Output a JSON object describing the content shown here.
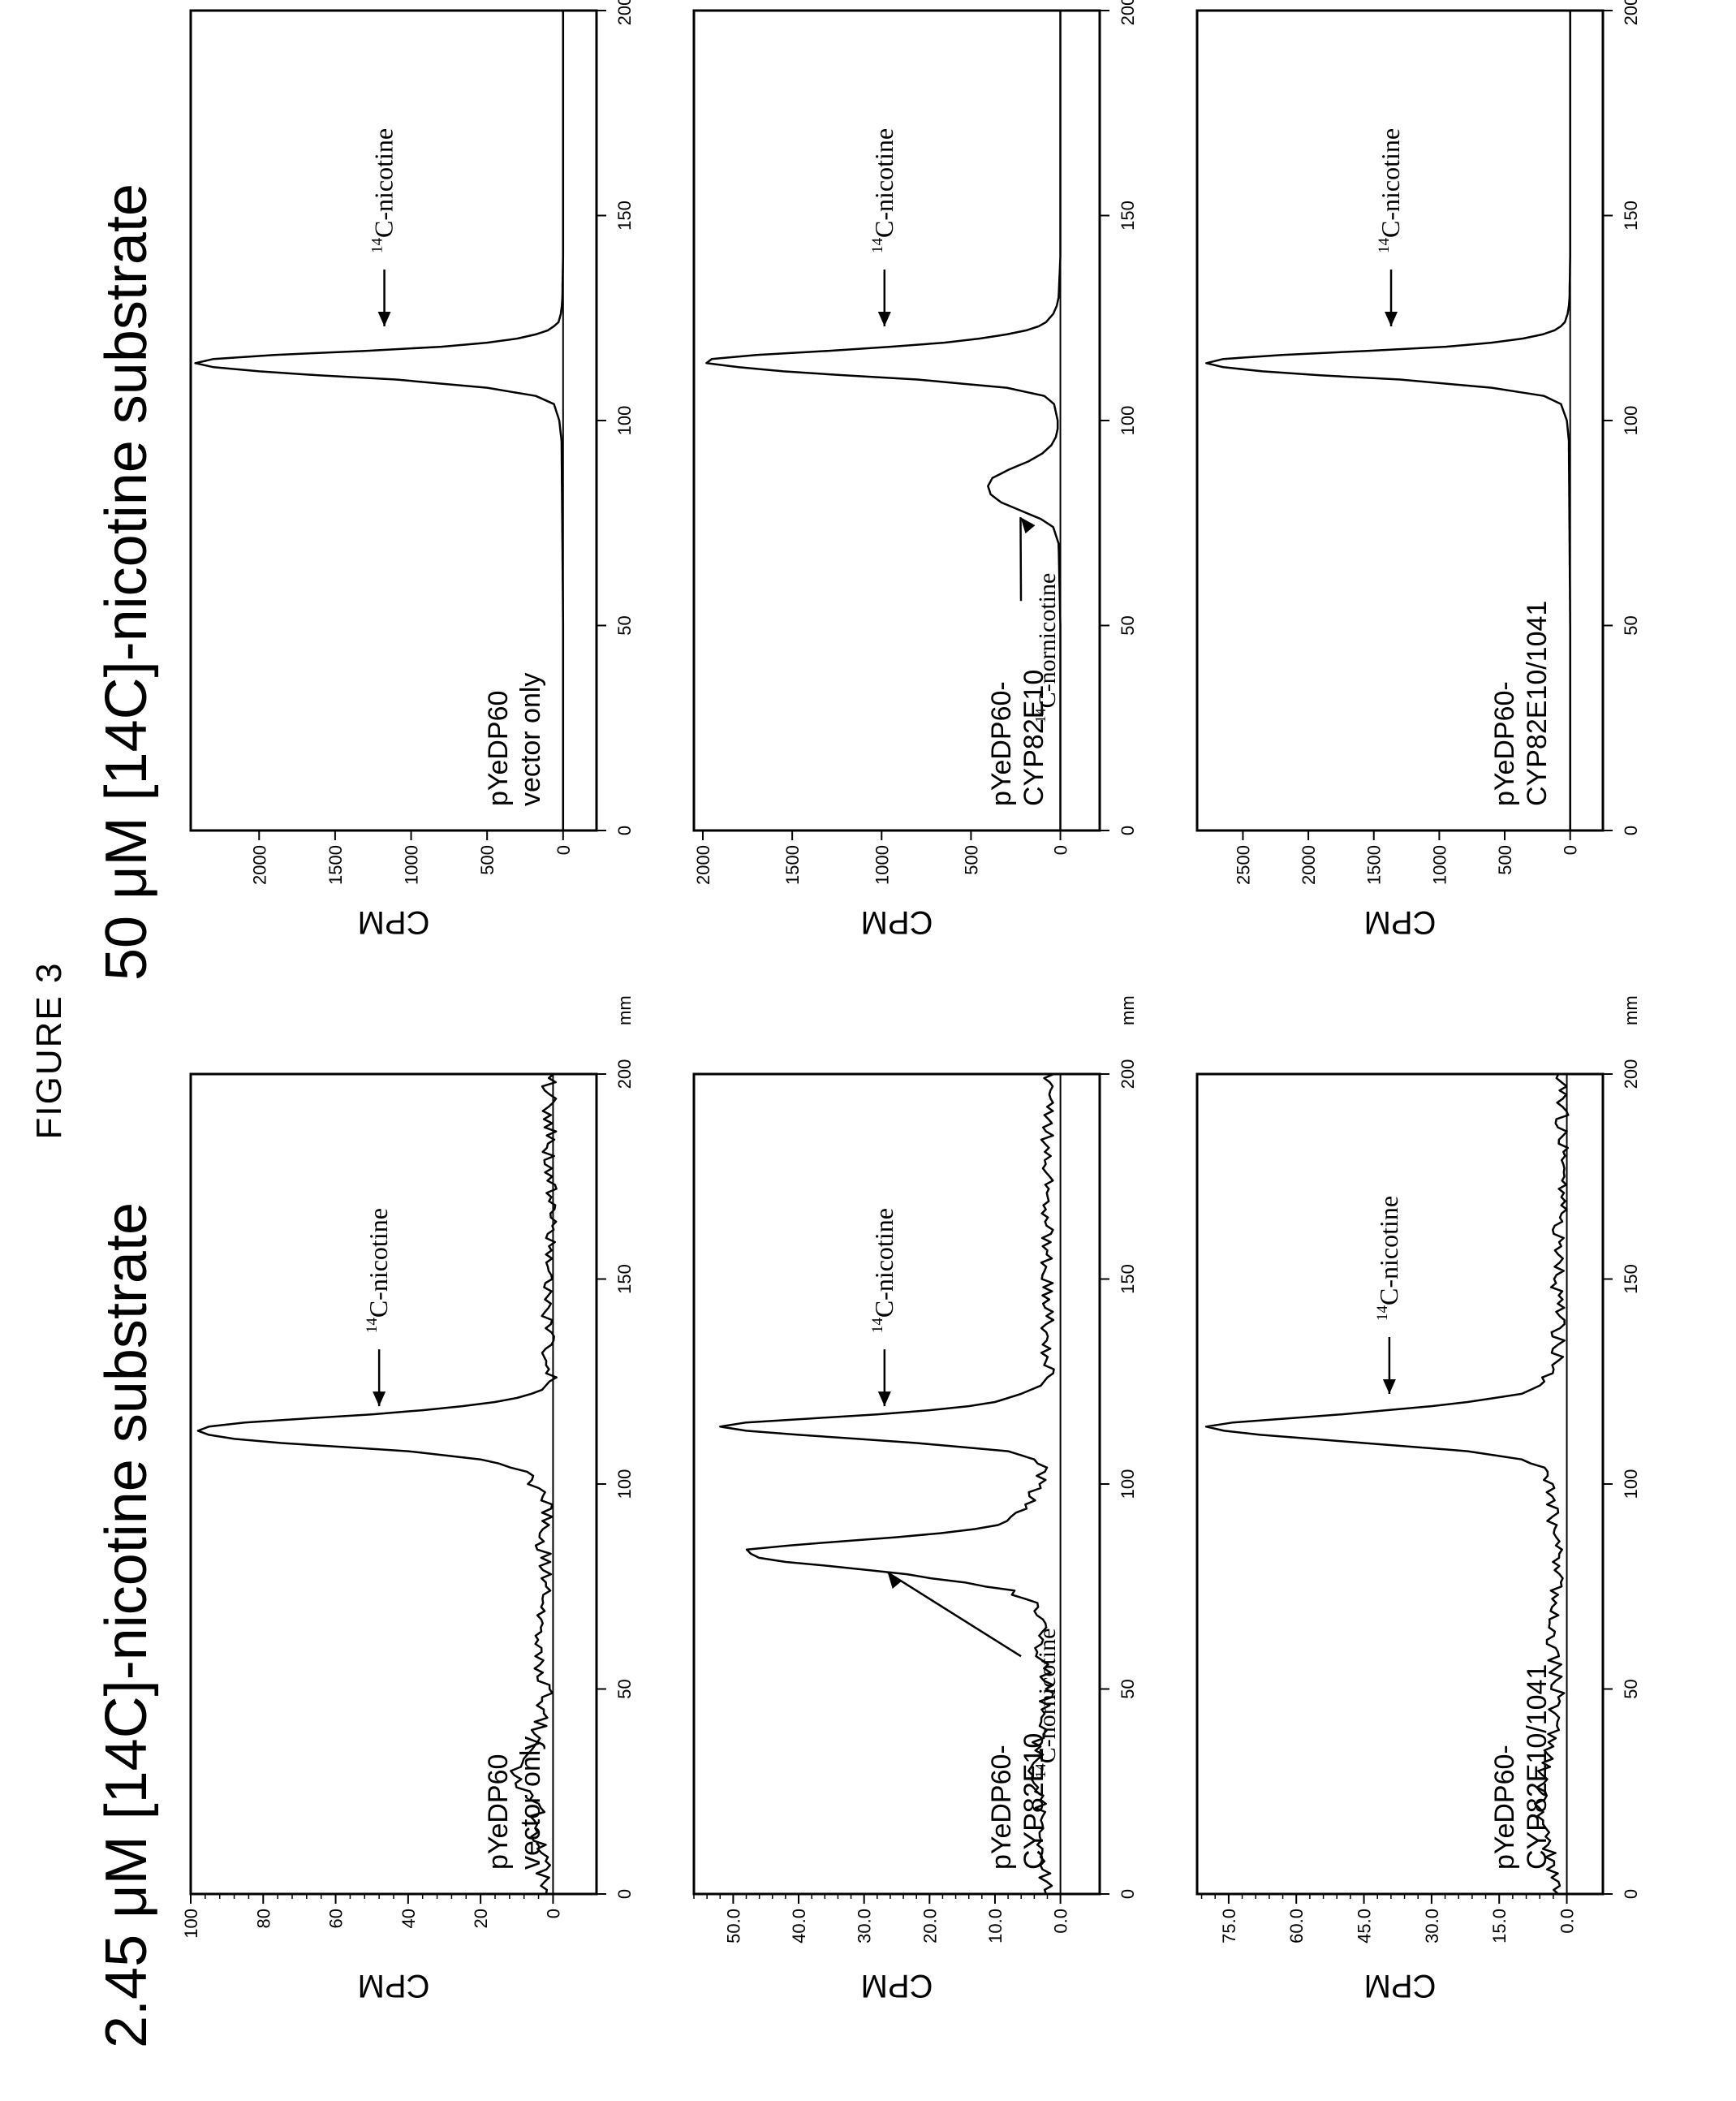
{
  "figure_label": "FIGURE 3",
  "left_condition_title": "2.45 μM [14C]-nicotine substrate",
  "right_condition_title": "50 μM [14C]-nicotine substrate",
  "colors": {
    "ink": "#000000",
    "background": "#ffffff"
  },
  "chart_data": [
    {
      "type": "line",
      "condition": "2.45 μM",
      "row": 1,
      "sample_label": [
        "pYeDP60",
        "vector only"
      ],
      "xlabel": "",
      "x_unit": "mm",
      "ylabel": "CPM",
      "xlim": [
        0,
        200
      ],
      "ylim": [
        -12,
        100
      ],
      "x_ticks": [
        0,
        50,
        100,
        150,
        200
      ],
      "x_tick_labels": [
        "0",
        "50",
        "100",
        "150",
        "200"
      ],
      "y_ticks": [
        0,
        20,
        40,
        60,
        80,
        100
      ],
      "y_tick_labels": [
        "0",
        "20",
        "40",
        "60",
        "80",
        "100"
      ],
      "noise_level": 4,
      "series": [
        {
          "x": [
            0,
            5,
            10,
            15,
            20,
            25,
            30,
            35,
            40,
            45,
            50,
            55,
            60,
            65,
            70,
            75,
            80,
            85,
            90,
            95,
            100,
            102,
            104,
            106,
            108,
            110,
            111,
            112,
            113,
            114,
            115,
            116,
            117,
            118,
            119,
            120,
            121,
            122,
            123,
            124,
            125,
            130,
            140,
            150,
            160,
            170,
            180,
            190,
            200
          ],
          "y": [
            1,
            3,
            2,
            6,
            4,
            8,
            10,
            6,
            4,
            3,
            2,
            5,
            3,
            4,
            2,
            2,
            2,
            3,
            2,
            2,
            5,
            6,
            10,
            20,
            40,
            75,
            88,
            95,
            98,
            95,
            85,
            68,
            50,
            36,
            25,
            16,
            10,
            6,
            3,
            2,
            1,
            1,
            2,
            2,
            1,
            1,
            1,
            1,
            1
          ]
        }
      ],
      "annotations": [
        {
          "sup": "14",
          "text": "C-nicotine",
          "x": 117
        }
      ]
    },
    {
      "type": "line",
      "condition": "2.45 μM",
      "row": 2,
      "sample_label": [
        "pYeDP60-",
        "CYP82E10"
      ],
      "xlabel": "",
      "x_unit": "mm",
      "ylabel": "CPM",
      "xlim": [
        0,
        200
      ],
      "ylim": [
        -6,
        56
      ],
      "x_ticks": [
        0,
        50,
        100,
        150,
        200
      ],
      "x_tick_labels": [
        "0",
        "50",
        "100",
        "150",
        "200"
      ],
      "y_ticks": [
        0,
        10,
        20,
        30,
        40,
        50
      ],
      "y_tick_labels": [
        "0.0",
        "10.0",
        "20.0",
        "30.0",
        "40.0",
        "50.0"
      ],
      "noise_level": 2,
      "series": [
        {
          "x": [
            0,
            10,
            20,
            30,
            40,
            50,
            60,
            65,
            70,
            72,
            74,
            76,
            78,
            80,
            81,
            82,
            83,
            84,
            85,
            86,
            87,
            88,
            90,
            92,
            94,
            96,
            98,
            100,
            104,
            106,
            108,
            110,
            112,
            113,
            114,
            115,
            116,
            117,
            118,
            119,
            120,
            122,
            124,
            126,
            130,
            140,
            150,
            160,
            170,
            180,
            190,
            200
          ],
          "y": [
            2,
            3,
            3,
            4,
            3,
            2,
            3,
            3,
            4,
            5,
            8,
            14,
            24,
            36,
            42,
            46,
            48,
            47,
            42,
            34,
            26,
            18,
            10,
            7,
            5,
            4,
            4,
            3,
            3,
            4,
            8,
            22,
            40,
            48,
            52,
            48,
            38,
            28,
            20,
            14,
            10,
            6,
            3,
            2,
            2,
            2,
            2,
            2,
            2,
            2,
            2,
            2
          ]
        }
      ],
      "annotations": [
        {
          "sup": "14",
          "text": "C-nornicotine",
          "x": 80
        },
        {
          "sup": "14",
          "text": "C-nicotine",
          "x": 117
        }
      ]
    },
    {
      "type": "line",
      "condition": "2.45 μM",
      "row": 3,
      "sample_label": [
        "pYeDP60-",
        "CYP82E10/1041"
      ],
      "xlabel": "",
      "x_unit": "mm",
      "ylabel": "CPM",
      "xlim": [
        0,
        200
      ],
      "ylim": [
        -8,
        82
      ],
      "x_ticks": [
        0,
        50,
        100,
        150,
        200
      ],
      "x_tick_labels": [
        "0",
        "50",
        "100",
        "150",
        "200"
      ],
      "y_ticks": [
        0,
        15,
        30,
        45,
        60,
        75
      ],
      "y_tick_labels": [
        "0.0",
        "15.0",
        "30.0",
        "45.0",
        "60.0",
        "75.0"
      ],
      "noise_level": 3,
      "series": [
        {
          "x": [
            0,
            10,
            20,
            30,
            40,
            50,
            60,
            70,
            80,
            90,
            100,
            104,
            106,
            108,
            110,
            112,
            113,
            114,
            115,
            116,
            117,
            118,
            119,
            120,
            121,
            122,
            124,
            126,
            128,
            130,
            140,
            150,
            160,
            170,
            180,
            190,
            200
          ],
          "y": [
            2,
            4,
            6,
            5,
            3,
            2,
            3,
            3,
            2,
            3,
            4,
            6,
            10,
            22,
            45,
            68,
            76,
            80,
            74,
            62,
            50,
            40,
            30,
            22,
            16,
            10,
            6,
            4,
            3,
            2,
            2,
            2,
            2,
            1,
            1,
            1,
            1
          ]
        }
      ],
      "annotations": [
        {
          "sup": "14",
          "text": "C-nicotine",
          "x": 120
        }
      ]
    },
    {
      "type": "line",
      "condition": "50 μM",
      "row": 1,
      "sample_label": [
        "pYeDP60",
        "vector only"
      ],
      "xlabel": "",
      "x_unit": "mm",
      "ylabel": "CPM",
      "xlim": [
        0,
        200
      ],
      "ylim": [
        -220,
        2450
      ],
      "x_ticks": [
        0,
        50,
        100,
        150,
        200
      ],
      "x_tick_labels": [
        "0",
        "50",
        "100",
        "150",
        "200"
      ],
      "y_ticks": [
        0,
        500,
        1000,
        1500,
        2000
      ],
      "y_tick_labels": [
        "0",
        "500",
        "1000",
        "1500",
        "2000"
      ],
      "noise_level": 0,
      "series": [
        {
          "x": [
            0,
            50,
            95,
            100,
            104,
            106,
            108,
            110,
            111,
            112,
            113,
            114,
            115,
            116,
            117,
            118,
            119,
            120,
            121,
            122,
            123,
            124,
            126,
            128,
            130,
            140,
            150,
            200
          ],
          "y": [
            0,
            0,
            10,
            25,
            60,
            180,
            500,
            1100,
            1600,
            2000,
            2300,
            2420,
            2300,
            1900,
            1300,
            800,
            500,
            300,
            180,
            100,
            60,
            30,
            15,
            8,
            5,
            0,
            0,
            0
          ]
        }
      ],
      "annotations": [
        {
          "sup": "14",
          "text": "C-nicotine",
          "x": 121
        }
      ]
    },
    {
      "type": "line",
      "condition": "50 μM",
      "row": 2,
      "sample_label": [
        "pYeDP60-",
        "CYP82E10"
      ],
      "xlabel": "",
      "x_unit": "mm",
      "ylabel": "CPM",
      "xlim": [
        0,
        200
      ],
      "ylim": [
        -220,
        2050
      ],
      "x_ticks": [
        0,
        50,
        100,
        150,
        200
      ],
      "x_tick_labels": [
        "0",
        "50",
        "100",
        "150",
        "200"
      ],
      "y_ticks": [
        0,
        500,
        1000,
        1500,
        2000
      ],
      "y_tick_labels": [
        "0",
        "500",
        "1000",
        "1500",
        "2000"
      ],
      "noise_level": 0,
      "series": [
        {
          "x": [
            0,
            50,
            70,
            74,
            76,
            78,
            80,
            82,
            84,
            86,
            88,
            90,
            92,
            94,
            96,
            98,
            100,
            104,
            106,
            108,
            110,
            111,
            112,
            113,
            114,
            115,
            116,
            117,
            118,
            119,
            120,
            121,
            122,
            123,
            124,
            126,
            128,
            130,
            140,
            150,
            200
          ],
          "y": [
            0,
            0,
            10,
            40,
            110,
            220,
            330,
            390,
            405,
            380,
            290,
            180,
            100,
            50,
            25,
            15,
            15,
            35,
            90,
            300,
            800,
            1200,
            1550,
            1800,
            1980,
            1950,
            1700,
            1300,
            950,
            650,
            450,
            300,
            190,
            120,
            80,
            40,
            20,
            10,
            0,
            0,
            0
          ]
        }
      ],
      "annotations": [
        {
          "sup": "14",
          "text": "C-nornicotine",
          "x": 78
        },
        {
          "sup": "14",
          "text": "C-nicotine",
          "x": 121
        }
      ]
    },
    {
      "type": "line",
      "condition": "50 μM",
      "row": 3,
      "sample_label": [
        "pYeDP60-",
        "CYP82E10/1041"
      ],
      "xlabel": "",
      "x_unit": "mm",
      "ylabel": "CPM",
      "xlim": [
        0,
        200
      ],
      "ylim": [
        -250,
        2850
      ],
      "x_ticks": [
        0,
        50,
        100,
        150,
        200
      ],
      "x_tick_labels": [
        "0",
        "50",
        "100",
        "150",
        "200"
      ],
      "y_ticks": [
        0,
        500,
        1000,
        1500,
        2000,
        2500
      ],
      "y_tick_labels": [
        "0",
        "500",
        "1000",
        "1500",
        "2000",
        "2500"
      ],
      "noise_level": 0,
      "series": [
        {
          "x": [
            0,
            50,
            95,
            100,
            104,
            106,
            108,
            110,
            111,
            112,
            113,
            114,
            115,
            116,
            117,
            118,
            119,
            120,
            121,
            122,
            123,
            124,
            126,
            128,
            130,
            140,
            150,
            200
          ],
          "y": [
            0,
            0,
            10,
            25,
            70,
            200,
            600,
            1300,
            1900,
            2350,
            2650,
            2780,
            2650,
            2200,
            1550,
            950,
            600,
            360,
            210,
            120,
            70,
            40,
            20,
            10,
            5,
            0,
            0,
            0
          ]
        }
      ],
      "annotations": [
        {
          "sup": "14",
          "text": "C-nicotine",
          "x": 121
        }
      ]
    }
  ]
}
